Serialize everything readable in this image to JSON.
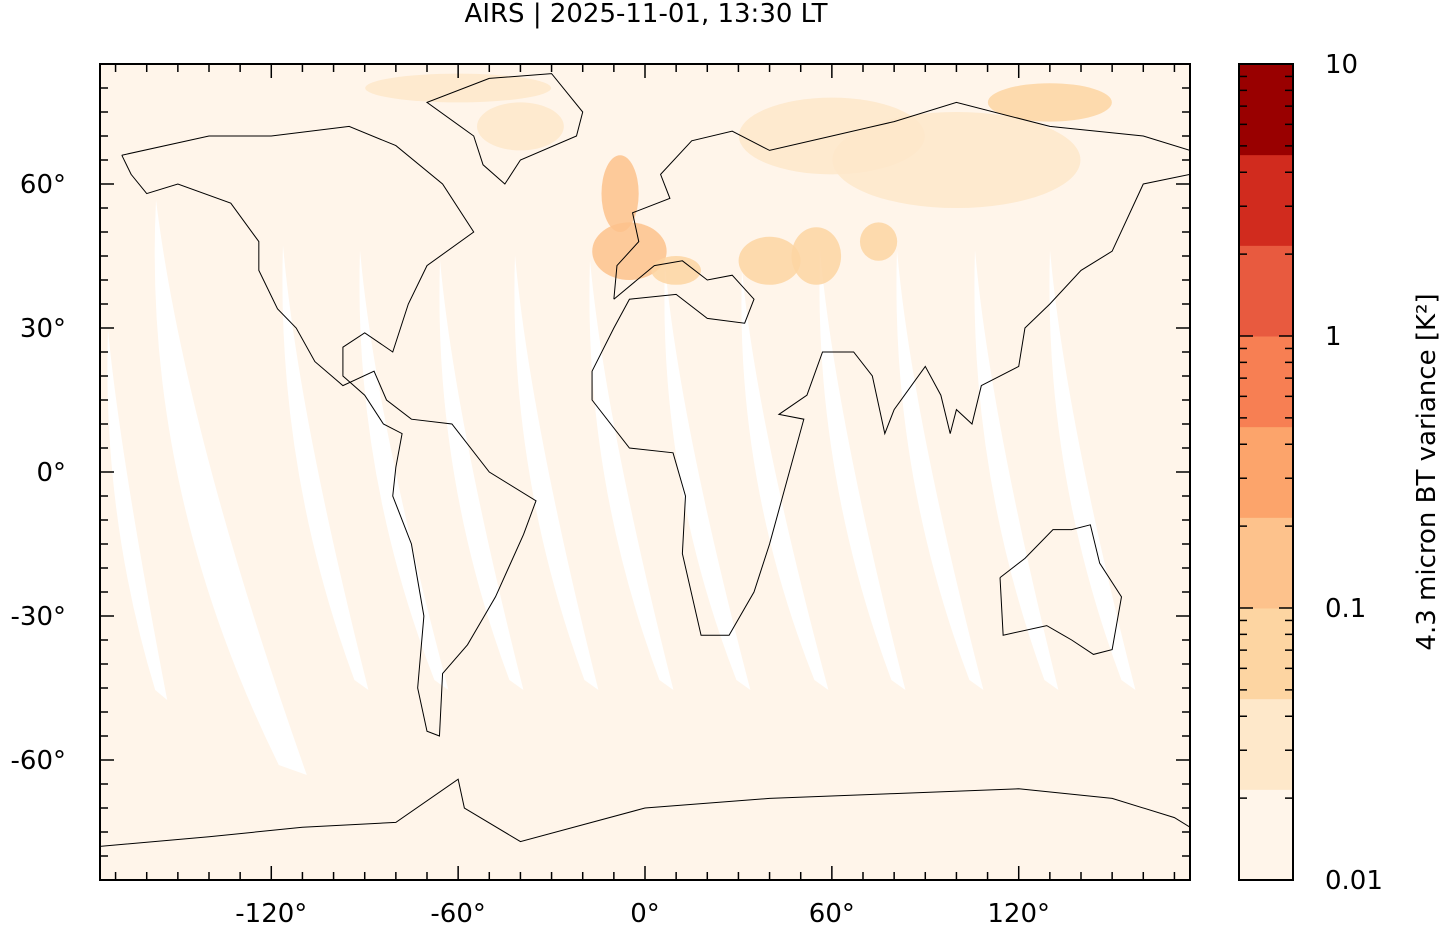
{
  "title": "AIRS | 2025-11-01, 13:30 LT",
  "map": {
    "projection": "cylindrical",
    "lon_range": [
      -175,
      175
    ],
    "lat_range": [
      -85,
      85
    ],
    "lon_ticks": [
      {
        "value": -120,
        "label": "-120°"
      },
      {
        "value": -60,
        "label": "-60°"
      },
      {
        "value": 0,
        "label": "0°"
      },
      {
        "value": 60,
        "label": "60°"
      },
      {
        "value": 120,
        "label": "120°"
      }
    ],
    "lat_ticks": [
      {
        "value": 60,
        "label": "60°"
      },
      {
        "value": 30,
        "label": "30°"
      },
      {
        "value": 0,
        "label": "0°"
      },
      {
        "value": -30,
        "label": "-30°"
      },
      {
        "value": -60,
        "label": "-60°"
      }
    ],
    "background_color": "#fff5ea",
    "gap_color": "#ffffff",
    "coastline_color": "#000000"
  },
  "colorbar": {
    "label": "4.3 micron BT variance [K²]",
    "scale": "log",
    "range": [
      0.01,
      10
    ],
    "ticks": [
      {
        "value": 10,
        "label": "10"
      },
      {
        "value": 1,
        "label": "1"
      },
      {
        "value": 0.1,
        "label": "0.1"
      },
      {
        "value": 0.01,
        "label": "0.01"
      }
    ],
    "colors": [
      "#fff5ea",
      "#fee8ca",
      "#fdd5a2",
      "#fdc28c",
      "#fca46b",
      "#f77f53",
      "#e85a3f",
      "#d12b1e",
      "#990000"
    ]
  }
}
